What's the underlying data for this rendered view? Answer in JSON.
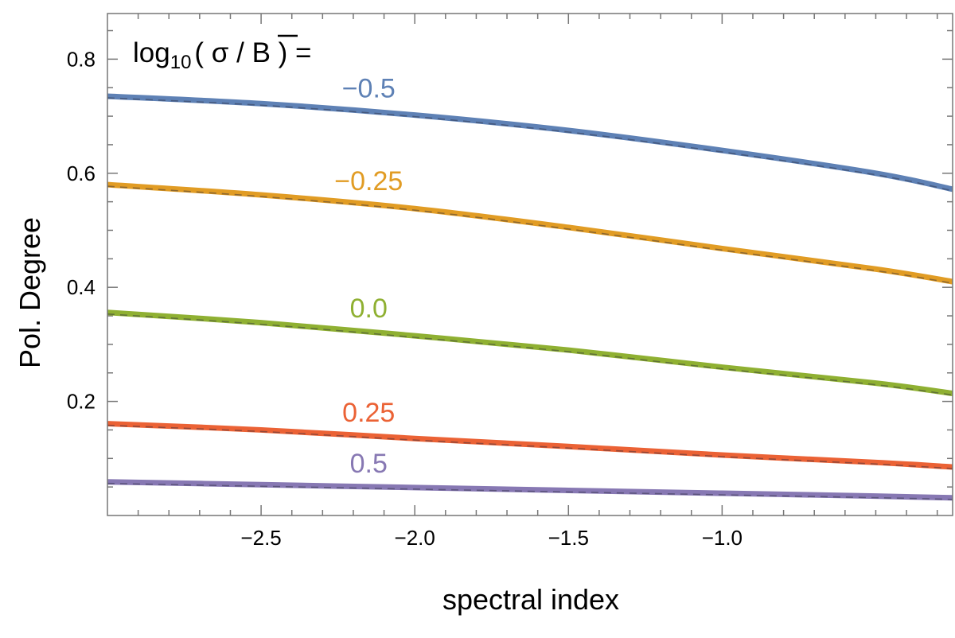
{
  "chart_data": {
    "type": "line",
    "xlabel": "spectral index",
    "ylabel": "Pol. Degree",
    "xlim": [
      -3.0,
      -0.25
    ],
    "ylim": [
      0.0,
      0.88
    ],
    "xticks": [
      -2.5,
      -2.0,
      -1.5,
      -1.0
    ],
    "xtick_labels": [
      "−2.5",
      "−2.0",
      "−1.5",
      "−1.0"
    ],
    "yticks": [
      0.2,
      0.4,
      0.6,
      0.8
    ],
    "ytick_labels": [
      "0.2",
      "0.4",
      "0.6",
      "0.8"
    ],
    "legend": {
      "prefix": "log",
      "subscript": "10",
      "expression": "( σ / B ) =",
      "overline_symbol": "B"
    },
    "series": [
      {
        "name": "-0.5",
        "label": "−0.5",
        "color": "#5E81B5",
        "label_x": -2.15,
        "x": [
          -3.0,
          -2.5,
          -2.0,
          -1.5,
          -1.0,
          -0.5,
          -0.25
        ],
        "y": [
          0.735,
          0.722,
          0.702,
          0.675,
          0.64,
          0.6,
          0.572
        ]
      },
      {
        "name": "-0.25",
        "label": "−0.25",
        "color": "#E19C24",
        "label_x": -2.15,
        "x": [
          -3.0,
          -2.5,
          -2.0,
          -1.5,
          -1.0,
          -0.5,
          -0.25
        ],
        "y": [
          0.58,
          0.562,
          0.538,
          0.505,
          0.468,
          0.432,
          0.41
        ]
      },
      {
        "name": "0.0",
        "label": "0.0",
        "color": "#8FB032",
        "label_x": -2.15,
        "x": [
          -3.0,
          -2.5,
          -2.0,
          -1.5,
          -1.0,
          -0.5,
          -0.25
        ],
        "y": [
          0.356,
          0.338,
          0.315,
          0.29,
          0.26,
          0.232,
          0.214
        ]
      },
      {
        "name": "0.25",
        "label": "0.25",
        "color": "#EB6235",
        "label_x": -2.15,
        "x": [
          -3.0,
          -2.5,
          -2.0,
          -1.5,
          -1.0,
          -0.5,
          -0.25
        ],
        "y": [
          0.161,
          0.15,
          0.135,
          0.121,
          0.106,
          0.093,
          0.085
        ]
      },
      {
        "name": "0.5",
        "label": "0.5",
        "color": "#8778B3",
        "label_x": -2.15,
        "x": [
          -3.0,
          -2.5,
          -2.0,
          -1.5,
          -1.0,
          -0.5,
          -0.25
        ],
        "y": [
          0.059,
          0.054,
          0.049,
          0.044,
          0.039,
          0.034,
          0.031
        ]
      }
    ]
  }
}
